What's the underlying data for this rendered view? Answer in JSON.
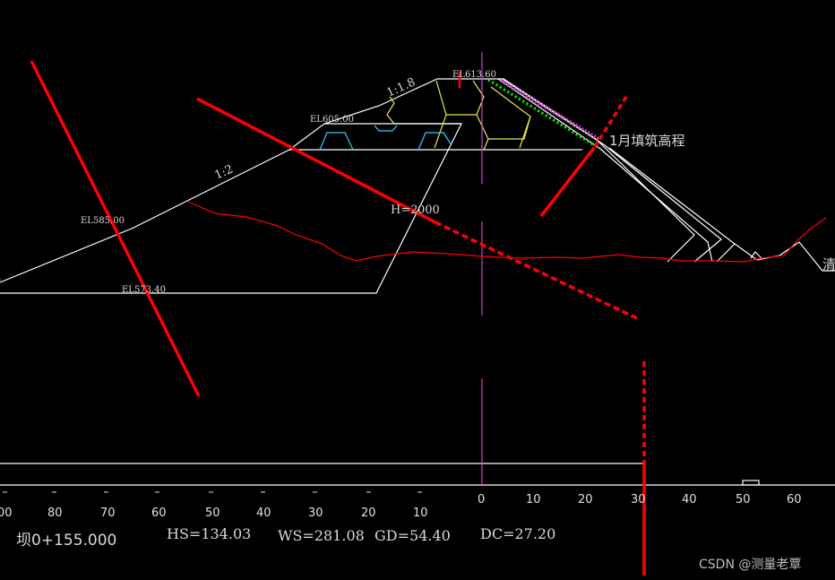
{
  "labels": {
    "crest_el": "EL613.60",
    "berm_el": "EL605.00",
    "left_el1": "EL585.00",
    "left_el2": "EL573.40",
    "slope_upper": "1:1.8",
    "slope_lower": "1:2",
    "height": "H=2",
    "height_tail": "000",
    "fill_note": "1月填筑高程",
    "right_edge_char": "清",
    "left_edge_char": "-"
  },
  "scale": {
    "ticks": [
      "00",
      "80",
      "70",
      "60",
      "50",
      "40",
      "30",
      "20",
      "10",
      "0",
      "10",
      "20",
      "30",
      "40",
      "50",
      "60"
    ]
  },
  "info": {
    "station": "坝0+155.000",
    "hs": "HS=134.03",
    "ws": "WS=281.08",
    "gd": "GD=54.40",
    "dc": "DC=27.20"
  },
  "watermark": "CSDN @测量老覃",
  "colors": {
    "line": "#ffffff",
    "red": "#ff0000",
    "yellow": "#e8e84a",
    "cyan": "#33ccff",
    "green": "#00ff00",
    "magenta": "#cc44cc"
  }
}
